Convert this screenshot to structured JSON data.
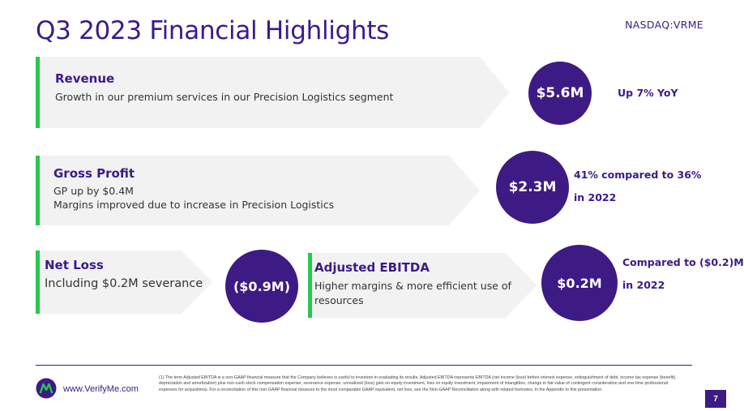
{
  "header": {
    "title": "Q3 2023 Financial Highlights",
    "ticker": "NASDAQ:VRME"
  },
  "revenue": {
    "title": "Revenue",
    "desc": "Growth in our premium services in our Precision Logistics segment",
    "value": "$5.6M",
    "note": "Up 7% YoY"
  },
  "gross_profit": {
    "title": "Gross Profit",
    "line1": "GP up by $0.4M",
    "line2": "Margins improved due to increase in Precision Logistics",
    "value": "$2.3M",
    "note_line1": "41% compared to 36%",
    "note_line2": "in 2022"
  },
  "net_loss": {
    "title": "Net Loss",
    "desc": "Including $0.2M severance",
    "value": "($0.9M)"
  },
  "adjusted_ebitda": {
    "title": "Adjusted EBITDA",
    "line1": "Higher margins & more efficient use of",
    "line2": "resources",
    "value": "$0.2M",
    "note_line1": "Compared to ($0.2)M",
    "note_line2": "in 2022"
  },
  "footer": {
    "footnote": "(1) The term Adjusted EBITDA is a non-GAAP financial measure that the Company believes is useful to investors in evaluating its results.  Adjusted EBITDA represents EBITDA (net income (loss) before interest expense, extinguishment of debt, income tax expense (benefit), depreciation and amortization) plus non-cash stock compensation expense, severance expense, unrealized (loss) gain on equity investment, loss on equity investment, impairment of intangibles, change in fair value of contingent consideration and one-time professional expenses for acquisitions. For a reconciliation of this non-GAAP financial measure to the most comparable GAAP equivalent, net loss, see the Non-GAAP Reconciliation along with related footnotes, in the Appendix to this presentation.",
    "website": "www.VerifyMe.com",
    "page_number": "7"
  },
  "colors": {
    "brand_purple": "#3e1a84",
    "accent_green": "#27c84e",
    "arrow_gray": "#f2f2f2"
  }
}
